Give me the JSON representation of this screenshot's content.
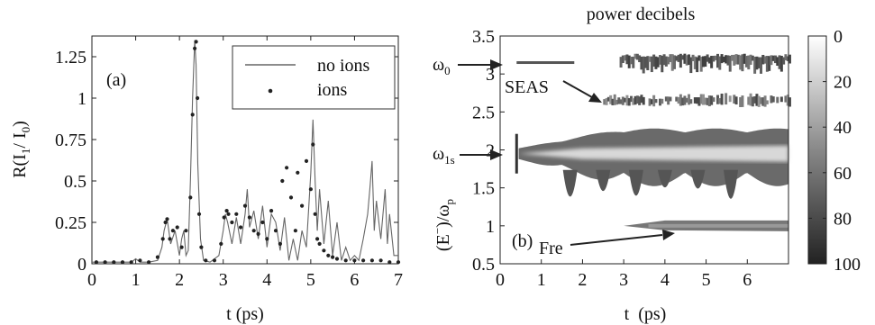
{
  "chart_data": [
    {
      "type": "line",
      "panel_label": "(a)",
      "xlabel": "t (ps)",
      "ylabel_parts": [
        "R(I",
        "1",
        "/ I",
        "0",
        ")"
      ],
      "xlim": [
        0,
        7
      ],
      "ylim": [
        0,
        1.375
      ],
      "xticks": [
        0,
        1,
        2,
        3,
        4,
        5,
        6,
        7
      ],
      "xtick_labels": [
        "0",
        "1",
        "2",
        "3",
        "4",
        "5",
        "6",
        "7"
      ],
      "yticks": [
        0,
        0.25,
        0.5,
        0.75,
        1,
        1.25
      ],
      "ytick_labels": [
        "0",
        "0.25",
        "0.5",
        "0.75",
        "1",
        "1.25"
      ],
      "legend": {
        "placement": "top-right",
        "entries": [
          "no ions",
          "ions"
        ]
      },
      "series": [
        {
          "name": "no ions",
          "style": "line",
          "x": [
            0,
            0.5,
            0.9,
            1.0,
            1.1,
            1.3,
            1.5,
            1.6,
            1.65,
            1.72,
            1.8,
            1.9,
            2.0,
            2.05,
            2.1,
            2.15,
            2.2,
            2.25,
            2.3,
            2.35,
            2.38,
            2.42,
            2.48,
            2.55,
            2.7,
            2.9,
            3.0,
            3.05,
            3.1,
            3.2,
            3.3,
            3.4,
            3.5,
            3.55,
            3.6,
            3.7,
            3.8,
            3.9,
            4.0,
            4.1,
            4.2,
            4.3,
            4.4,
            4.5,
            4.6,
            4.7,
            4.8,
            4.9,
            5.0,
            5.05,
            5.1,
            5.15,
            5.2,
            5.3,
            5.4,
            5.5,
            5.6,
            5.7,
            5.8,
            5.9,
            6.0,
            6.1,
            6.2,
            6.3,
            6.35,
            6.4,
            6.45,
            6.5,
            6.6,
            6.7,
            6.75,
            6.8,
            6.9,
            7.0
          ],
          "y": [
            0.01,
            0.01,
            0.01,
            0.03,
            0.01,
            0.01,
            0.02,
            0.1,
            0.2,
            0.27,
            0.12,
            0.2,
            0.05,
            0.15,
            0.2,
            0.05,
            0.08,
            0.5,
            1.0,
            1.35,
            1.2,
            0.6,
            0.15,
            0.02,
            0.01,
            0.05,
            0.2,
            0.3,
            0.25,
            0.12,
            0.28,
            0.12,
            0.3,
            0.45,
            0.22,
            0.32,
            0.15,
            0.35,
            0.1,
            0.3,
            0.25,
            0.08,
            0.28,
            0.02,
            0.15,
            0.02,
            0.2,
            0.1,
            0.55,
            0.87,
            0.5,
            0.2,
            0.45,
            0.12,
            0.38,
            0.05,
            0.25,
            0.02,
            0.1,
            0.02,
            0.05,
            0.02,
            0.15,
            0.3,
            0.45,
            0.62,
            0.2,
            0.38,
            0.15,
            0.45,
            0.12,
            0.3,
            0.05,
            0.05
          ]
        },
        {
          "name": "ions",
          "style": "dots",
          "x": [
            0.1,
            0.3,
            0.5,
            0.7,
            0.9,
            1.1,
            1.3,
            1.5,
            1.62,
            1.68,
            1.72,
            1.78,
            1.85,
            1.95,
            2.05,
            2.15,
            2.25,
            2.3,
            2.35,
            2.38,
            2.41,
            2.45,
            2.5,
            2.6,
            2.8,
            2.95,
            3.02,
            3.08,
            3.12,
            3.2,
            3.3,
            3.4,
            3.5,
            3.6,
            3.7,
            3.8,
            3.9,
            4.0,
            4.1,
            4.2,
            4.3,
            4.35,
            4.45,
            4.55,
            4.65,
            4.7,
            4.8,
            4.9,
            5.0,
            5.05,
            5.1,
            5.15,
            5.2,
            5.3,
            5.4,
            5.5,
            5.6,
            5.8,
            6.0,
            6.2,
            6.4,
            6.6,
            6.8,
            7.0
          ],
          "y": [
            0.01,
            0.01,
            0.01,
            0.01,
            0.01,
            0.02,
            0.01,
            0.04,
            0.15,
            0.25,
            0.27,
            0.15,
            0.2,
            0.22,
            0.1,
            0.2,
            0.4,
            0.9,
            1.3,
            1.34,
            1.0,
            0.3,
            0.1,
            0.02,
            0.02,
            0.12,
            0.28,
            0.32,
            0.3,
            0.25,
            0.3,
            0.22,
            0.35,
            0.28,
            0.2,
            0.18,
            0.25,
            0.15,
            0.32,
            0.2,
            0.12,
            0.5,
            0.58,
            0.4,
            0.2,
            0.55,
            0.35,
            0.62,
            0.45,
            0.72,
            0.3,
            0.15,
            0.12,
            0.08,
            0.05,
            0.04,
            0.03,
            0.02,
            0.02,
            0.02,
            0.02,
            0.02,
            0.01,
            0.01
          ]
        }
      ]
    },
    {
      "type": "heatmap",
      "panel_label": "(b)",
      "title": "power decibels",
      "xlabel": "t  (ps)",
      "ylabel_parts": [
        "(E",
        "−",
        ")/ω",
        "p"
      ],
      "xlim": [
        0,
        7
      ],
      "ylim": [
        0.5,
        3.5
      ],
      "xticks": [
        0,
        1,
        2,
        3,
        4,
        5,
        6
      ],
      "xtick_labels": [
        "0",
        "1",
        "2",
        "3",
        "4",
        "5",
        "6"
      ],
      "yticks": [
        0.5,
        1,
        1.5,
        2,
        2.5,
        3,
        3.5
      ],
      "ytick_labels": [
        "0.5",
        "1",
        "1.5",
        "2",
        "2.5",
        "3",
        "3.5"
      ],
      "colorbar": {
        "range": [
          0,
          100
        ],
        "ticks": [
          0,
          20,
          40,
          60,
          80,
          100
        ],
        "tick_labels": [
          "0",
          "20",
          "40",
          "60",
          "80",
          "100"
        ]
      },
      "features": [
        {
          "name": "omega0",
          "y": 3.15,
          "t_start": 0,
          "t_end": 7
        },
        {
          "name": "SEAS",
          "y": 2.65,
          "t_start": 2.5,
          "t_end": 7
        },
        {
          "name": "omega1s",
          "y": 1.95,
          "t_start": 0.4,
          "t_end": 7
        },
        {
          "name": "Fre",
          "y": 1.0,
          "t_start": 3.0,
          "t_end": 7
        }
      ],
      "annotations": [
        {
          "label_parts": [
            "ω",
            "0"
          ],
          "points_to": [
            0.0,
            3.15
          ]
        },
        {
          "label_parts": [
            "SEAS"
          ],
          "points_to": [
            2.3,
            2.7
          ]
        },
        {
          "label_parts": [
            "ω",
            "1s"
          ],
          "points_to": [
            0.0,
            1.95
          ]
        },
        {
          "label_parts": [
            "Fre"
          ],
          "points_to": [
            3.5,
            1.0
          ]
        }
      ]
    }
  ]
}
